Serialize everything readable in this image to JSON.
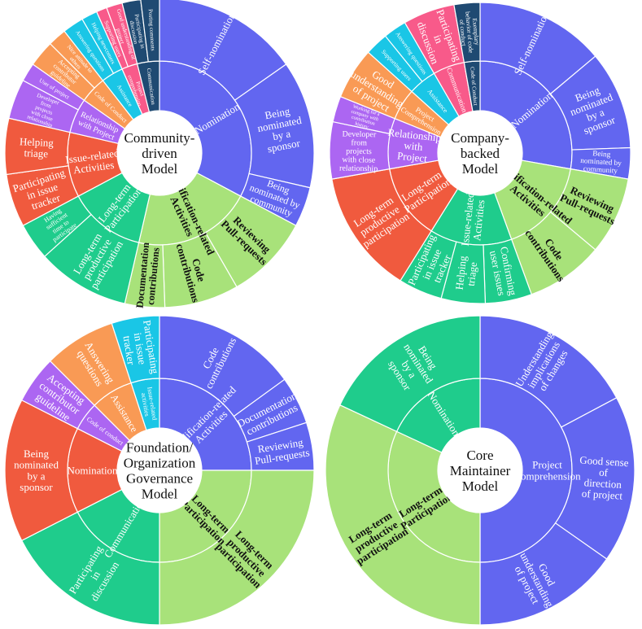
{
  "colors": {
    "blue": "#6266f0",
    "green": "#a8e27a",
    "teal": "#1fcc8c",
    "red": "#f05a3e",
    "purple": "#ac66f2",
    "orange": "#f99a55",
    "cyan": "#1ac6e6",
    "pink": "#f85a8a",
    "navy": "#1f4a72"
  },
  "chart_data": [
    {
      "type": "sunburst",
      "center_lines": [
        "Community-",
        "driven",
        "Model"
      ],
      "inner": [
        {
          "label": "Nomination",
          "color": "blue",
          "start": 0,
          "end": 118
        },
        {
          "label": "Modification-related Activities",
          "color": "green",
          "start": 118,
          "end": 193
        },
        {
          "label": "Long-term Participation",
          "color": "teal",
          "start": 193,
          "end": 242
        },
        {
          "label": "Issue-related Activities",
          "color": "red",
          "start": 242,
          "end": 283
        },
        {
          "label": "Relationship with Project",
          "color": "purple",
          "start": 283,
          "end": 305
        },
        {
          "label": "Code of Conduct",
          "color": "orange",
          "start": 305,
          "end": 322
        },
        {
          "label": "Assistance",
          "color": "cyan",
          "start": 322,
          "end": 336
        },
        {
          "label": "Project comprehension",
          "color": "pink",
          "start": 336,
          "end": 346
        },
        {
          "label": "Communication",
          "color": "navy",
          "start": 346,
          "end": 360
        }
      ],
      "outer": [
        {
          "label": "Self-nomination",
          "color": "blue",
          "start": 0,
          "end": 55
        },
        {
          "label": "Being nominated by a sponsor",
          "color": "blue",
          "start": 55,
          "end": 103
        },
        {
          "label": "Being nominated by community",
          "color": "blue",
          "start": 103,
          "end": 118
        },
        {
          "label": "Reviewing Pull-requests",
          "color": "green",
          "start": 118,
          "end": 150
        },
        {
          "label": "Code contributions",
          "color": "green",
          "start": 150,
          "end": 178
        },
        {
          "label": "Documentation contributions",
          "color": "green",
          "start": 178,
          "end": 193
        },
        {
          "label": "Long-term productive participation",
          "color": "teal",
          "start": 193,
          "end": 228
        },
        {
          "label": "Having sufficient time to participate",
          "color": "teal",
          "start": 228,
          "end": 242
        },
        {
          "label": "Participating in issue tracker",
          "color": "red",
          "start": 242,
          "end": 262
        },
        {
          "label": "Helping triage",
          "color": "red",
          "start": 262,
          "end": 283
        },
        {
          "label": "Developer from projects with close relationship",
          "color": "purple",
          "start": 283,
          "end": 298
        },
        {
          "label": "User of project",
          "color": "purple",
          "start": 298,
          "end": 305
        },
        {
          "label": "Accepting contributor guideline",
          "color": "orange",
          "start": 305,
          "end": 315
        },
        {
          "label": "Nice attitude to others",
          "color": "orange",
          "start": 315,
          "end": 322
        },
        {
          "label": "Answering questions",
          "color": "cyan",
          "start": 322,
          "end": 330
        },
        {
          "label": "Helping newcomers",
          "color": "cyan",
          "start": 330,
          "end": 336
        },
        {
          "label": "Supporting users",
          "color": "pink",
          "start": 336,
          "end": 340
        },
        {
          "label": "Good understanding of project",
          "color": "pink",
          "start": 340,
          "end": 346
        },
        {
          "label": "Participating in discussion",
          "color": "navy",
          "start": 346,
          "end": 353
        },
        {
          "label": "Posting comments",
          "color": "navy",
          "start": 353,
          "end": 360
        }
      ]
    },
    {
      "type": "sunburst",
      "center_lines": [
        "Company-",
        "backed",
        "Model"
      ],
      "inner": [
        {
          "label": "Nomination",
          "color": "blue",
          "start": 0,
          "end": 100
        },
        {
          "label": "Modification-related Activities",
          "color": "green",
          "start": 100,
          "end": 160
        },
        {
          "label": "Issue-related Activities",
          "color": "teal",
          "start": 160,
          "end": 212
        },
        {
          "label": "Long-term Participation",
          "color": "red",
          "start": 212,
          "end": 260
        },
        {
          "label": "Relationship with Project",
          "color": "purple",
          "start": 260,
          "end": 292
        },
        {
          "label": "Project Comprehension",
          "color": "orange",
          "start": 292,
          "end": 312
        },
        {
          "label": "Assistance",
          "color": "cyan",
          "start": 312,
          "end": 330
        },
        {
          "label": "Communication",
          "color": "pink",
          "start": 330,
          "end": 350
        },
        {
          "label": "Code of Conduct",
          "color": "navy",
          "start": 350,
          "end": 360
        }
      ],
      "outer": [
        {
          "label": "Self-nomination",
          "color": "blue",
          "start": 0,
          "end": 50
        },
        {
          "label": "Being nominated by a sponsor",
          "color": "blue",
          "start": 50,
          "end": 88
        },
        {
          "label": "Being nominated by community",
          "color": "blue",
          "start": 88,
          "end": 100
        },
        {
          "label": "Reviewing Pull-requests",
          "color": "green",
          "start": 100,
          "end": 130
        },
        {
          "label": "Code contributions",
          "color": "green",
          "start": 130,
          "end": 160
        },
        {
          "label": "Confirming user issues",
          "color": "teal",
          "start": 160,
          "end": 178
        },
        {
          "label": "Helping triage",
          "color": "teal",
          "start": 178,
          "end": 195
        },
        {
          "label": "Participating in issue tracker",
          "color": "teal",
          "start": 195,
          "end": 212
        },
        {
          "label": "Long-term productive participation",
          "color": "red",
          "start": 212,
          "end": 260
        },
        {
          "label": "Developer from projects with close relationship",
          "color": "purple",
          "start": 260,
          "end": 282
        },
        {
          "label": "Working for a company with contribution history",
          "color": "purple",
          "start": 282,
          "end": 292
        },
        {
          "label": "Good understanding of project",
          "color": "orange",
          "start": 292,
          "end": 312
        },
        {
          "label": "Supporting users",
          "color": "cyan",
          "start": 312,
          "end": 321
        },
        {
          "label": "Answering questions",
          "color": "cyan",
          "start": 321,
          "end": 330
        },
        {
          "label": "Participating in discussion",
          "color": "pink",
          "start": 330,
          "end": 350
        },
        {
          "label": "Exemplary behavior of code of conduct",
          "color": "navy",
          "start": 350,
          "end": 360
        }
      ]
    },
    {
      "type": "sunburst",
      "center_lines": [
        "Foundation/",
        "Organization",
        "Governance",
        "Model"
      ],
      "inner": [
        {
          "label": "Modification-related Activities",
          "color": "blue",
          "start": 0,
          "end": 90
        },
        {
          "label": "Long-term Participation",
          "color": "green",
          "start": 90,
          "end": 180
        },
        {
          "label": "Communication",
          "color": "teal",
          "start": 180,
          "end": 243
        },
        {
          "label": "Nomination",
          "color": "red",
          "start": 243,
          "end": 297
        },
        {
          "label": "Code of conduct",
          "color": "purple",
          "start": 297,
          "end": 315
        },
        {
          "label": "Assistance",
          "color": "orange",
          "start": 315,
          "end": 342
        },
        {
          "label": "Issue-related activities",
          "color": "cyan",
          "start": 342,
          "end": 360
        }
      ],
      "outer": [
        {
          "label": "Code contributions",
          "color": "blue",
          "start": 0,
          "end": 54
        },
        {
          "label": "Documentation contributions",
          "color": "blue",
          "start": 54,
          "end": 72
        },
        {
          "label": "Reviewing Pull-requests",
          "color": "blue",
          "start": 72,
          "end": 90
        },
        {
          "label": "Long-term productive participation",
          "color": "green",
          "start": 90,
          "end": 180
        },
        {
          "label": "Participating in discussion",
          "color": "teal",
          "start": 180,
          "end": 243
        },
        {
          "label": "Being nominated by a sponsor",
          "color": "red",
          "start": 243,
          "end": 297
        },
        {
          "label": "Accepting contributor guideline",
          "color": "purple",
          "start": 297,
          "end": 315
        },
        {
          "label": "Answering questions",
          "color": "orange",
          "start": 315,
          "end": 342
        },
        {
          "label": "Participating in issue tracker",
          "color": "cyan",
          "start": 342,
          "end": 360
        }
      ]
    },
    {
      "type": "sunburst",
      "center_lines": [
        "Core",
        "Maintainer",
        "Model"
      ],
      "inner": [
        {
          "label": "Project Comprehension",
          "color": "blue",
          "start": 0,
          "end": 180
        },
        {
          "label": "Long-term Participation",
          "color": "green",
          "start": 180,
          "end": 295
        },
        {
          "label": "Nomination",
          "color": "teal",
          "start": 295,
          "end": 360
        }
      ],
      "outer": [
        {
          "label": "Understanding implications of changes",
          "color": "blue",
          "start": 0,
          "end": 62
        },
        {
          "label": "Good sense of direction of project",
          "color": "blue",
          "start": 62,
          "end": 125
        },
        {
          "label": "Good understanding of project",
          "color": "blue",
          "start": 125,
          "end": 180
        },
        {
          "label": "Long-term productive participation",
          "color": "green",
          "start": 180,
          "end": 295
        },
        {
          "label": "Being nominated by a sponsor",
          "color": "teal",
          "start": 295,
          "end": 360
        }
      ]
    }
  ]
}
